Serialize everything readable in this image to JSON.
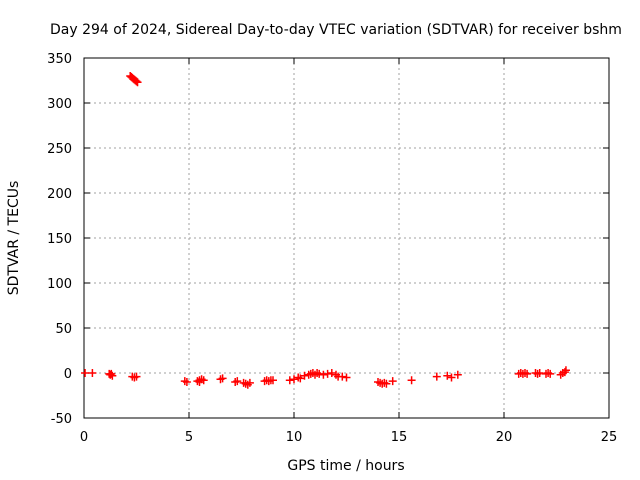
{
  "chart_data": {
    "type": "scatter",
    "title": "Day 294 of 2024, Sidereal Day-to-day VTEC variation (SDTVAR) for receiver bshm",
    "xlabel": "GPS time / hours",
    "ylabel": "SDTVAR / TECUs",
    "xlim": [
      0,
      25
    ],
    "ylim": [
      -50,
      350
    ],
    "xticks": [
      0,
      5,
      10,
      15,
      20,
      25
    ],
    "yticks": [
      -50,
      0,
      50,
      100,
      150,
      200,
      250,
      300,
      350
    ],
    "grid": true,
    "marker": "+",
    "colors": {
      "marker": "#ff0000",
      "grid": "#a0a0a0",
      "axis": "#000000"
    },
    "series": [
      {
        "name": "SDTVAR",
        "points": [
          [
            0.05,
            0
          ],
          [
            0.4,
            0
          ],
          [
            1.2,
            -1
          ],
          [
            1.25,
            -2
          ],
          [
            1.3,
            -1
          ],
          [
            1.35,
            -3
          ],
          [
            2.2,
            330
          ],
          [
            2.25,
            329
          ],
          [
            2.3,
            328
          ],
          [
            2.35,
            327
          ],
          [
            2.4,
            326
          ],
          [
            2.45,
            325
          ],
          [
            2.5,
            324
          ],
          [
            2.55,
            323
          ],
          [
            2.3,
            -4
          ],
          [
            2.4,
            -5
          ],
          [
            2.5,
            -4
          ],
          [
            4.8,
            -9
          ],
          [
            4.9,
            -10
          ],
          [
            5.4,
            -9
          ],
          [
            5.5,
            -8
          ],
          [
            5.6,
            -7
          ],
          [
            5.7,
            -8
          ],
          [
            5.5,
            -10
          ],
          [
            6.5,
            -7
          ],
          [
            6.6,
            -6
          ],
          [
            7.2,
            -10
          ],
          [
            7.3,
            -9
          ],
          [
            7.6,
            -11
          ],
          [
            7.7,
            -12
          ],
          [
            7.8,
            -13
          ],
          [
            7.9,
            -11
          ],
          [
            8.6,
            -9
          ],
          [
            8.7,
            -8
          ],
          [
            8.8,
            -9
          ],
          [
            8.9,
            -8
          ],
          [
            9.0,
            -8
          ],
          [
            9.8,
            -8
          ],
          [
            10.0,
            -7
          ],
          [
            10.2,
            -5
          ],
          [
            10.3,
            -6
          ],
          [
            10.5,
            -3
          ],
          [
            10.7,
            -2
          ],
          [
            10.8,
            -1
          ],
          [
            10.9,
            0
          ],
          [
            11.0,
            -2
          ],
          [
            11.1,
            0
          ],
          [
            11.2,
            -1
          ],
          [
            11.4,
            -2
          ],
          [
            11.6,
            -1
          ],
          [
            11.8,
            0
          ],
          [
            12.0,
            -2
          ],
          [
            12.1,
            -4
          ],
          [
            12.3,
            -4
          ],
          [
            12.5,
            -5
          ],
          [
            14.0,
            -10
          ],
          [
            14.1,
            -11
          ],
          [
            14.2,
            -12
          ],
          [
            14.3,
            -11
          ],
          [
            14.4,
            -12
          ],
          [
            14.7,
            -9
          ],
          [
            15.6,
            -8
          ],
          [
            16.8,
            -4
          ],
          [
            17.3,
            -3
          ],
          [
            17.5,
            -5
          ],
          [
            17.8,
            -2
          ],
          [
            20.7,
            -1
          ],
          [
            20.8,
            0
          ],
          [
            20.9,
            -1
          ],
          [
            21.0,
            0
          ],
          [
            21.1,
            -1
          ],
          [
            21.5,
            0
          ],
          [
            21.6,
            -1
          ],
          [
            21.7,
            0
          ],
          [
            22.0,
            -1
          ],
          [
            22.1,
            0
          ],
          [
            22.2,
            -1
          ],
          [
            22.7,
            -2
          ],
          [
            22.8,
            0
          ],
          [
            22.9,
            1
          ],
          [
            22.95,
            3
          ]
        ]
      }
    ]
  }
}
